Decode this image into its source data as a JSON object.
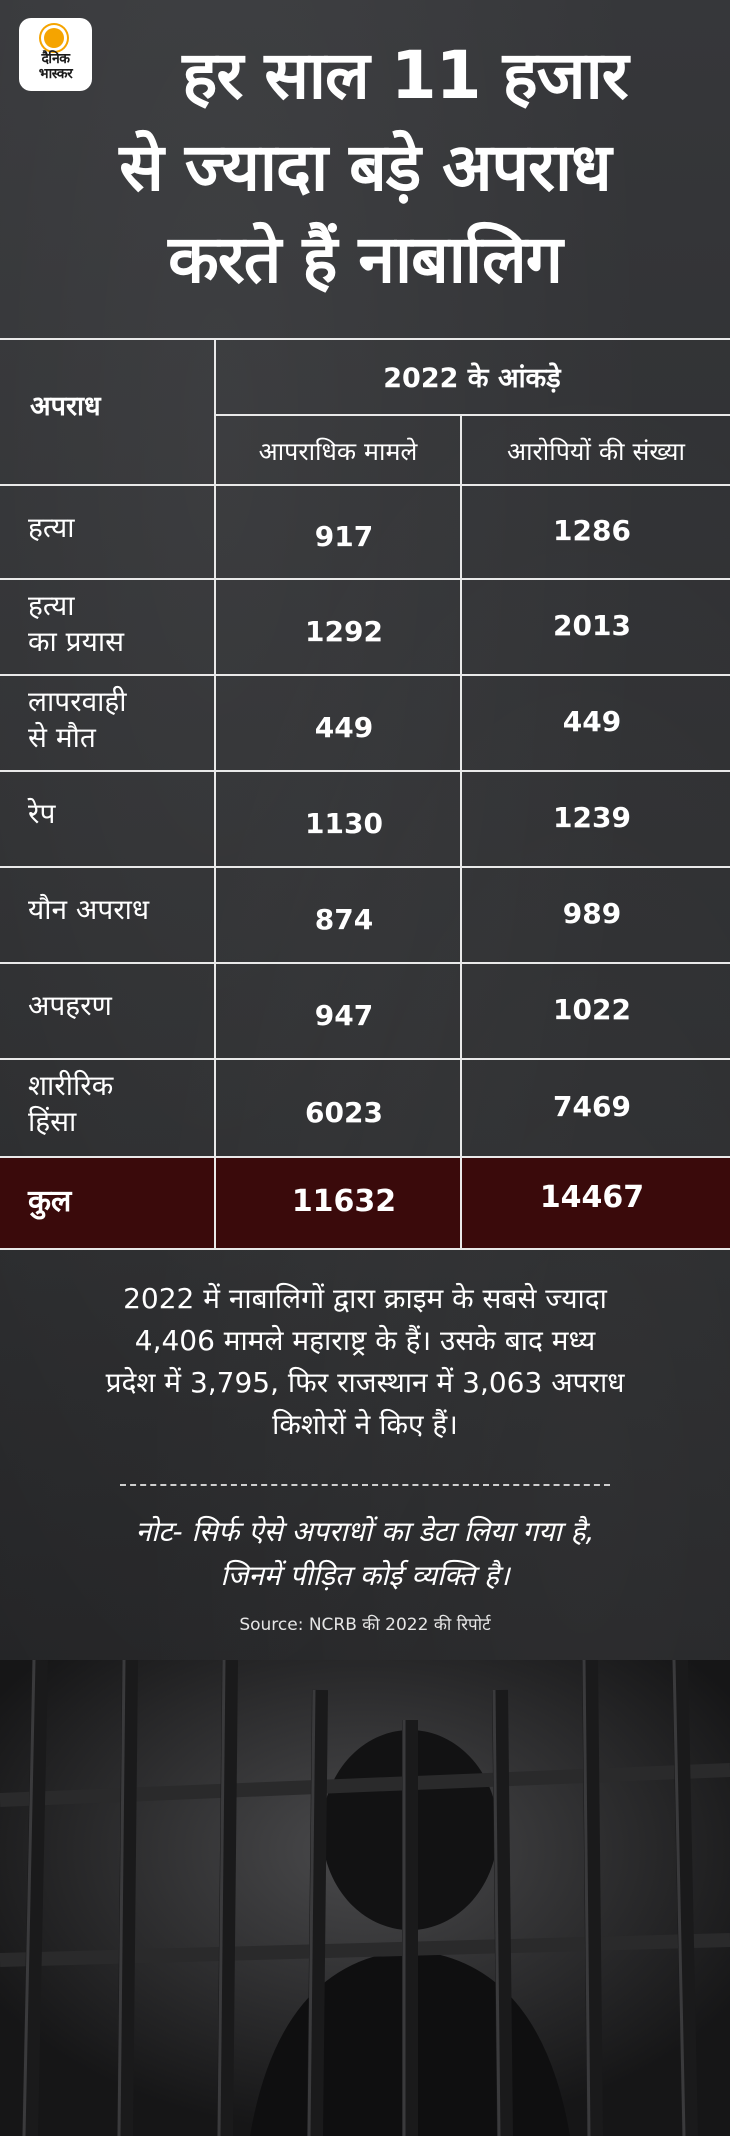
{
  "brand": {
    "logo_text_line1": "दैनिक",
    "logo_text_line2": "भास्कर"
  },
  "headline": {
    "line1": "हर साल 11 हजार",
    "line2": "से ज्यादा बड़े अपराध",
    "line3": "करते हैं नाबालिग"
  },
  "table": {
    "header_crime": "अपराध",
    "header_year": "2022 के आंकड़े",
    "header_col1": "आपराधिक मामले",
    "header_col2": "आरोपियों की संख्या"
  },
  "chart_data": {
    "type": "table",
    "title": "हर साल 11 हजार से ज्यादा बड़े अपराध करते हैं नाबालिग",
    "columns": [
      "अपराध",
      "आपराधिक मामले",
      "आरोपियों की संख्या"
    ],
    "rows": [
      {
        "crime_line1": "हत्या",
        "crime_line2": "",
        "cases": "917",
        "accused": "1286"
      },
      {
        "crime_line1": "हत्या",
        "crime_line2": "का प्रयास",
        "cases": "1292",
        "accused": "2013"
      },
      {
        "crime_line1": "लापरवाही",
        "crime_line2": "से मौत",
        "cases": "449",
        "accused": "449"
      },
      {
        "crime_line1": "रेप",
        "crime_line2": "",
        "cases": "1130",
        "accused": "1239"
      },
      {
        "crime_line1": "यौन अपराध",
        "crime_line2": "",
        "cases": "874",
        "accused": "989"
      },
      {
        "crime_line1": "अपहरण",
        "crime_line2": "",
        "cases": "947",
        "accused": "1022"
      },
      {
        "crime_line1": "शारीरिक",
        "crime_line2": "हिंसा",
        "cases": "6023",
        "accused": "7469"
      }
    ],
    "total": {
      "label": "कुल",
      "cases": "11632",
      "accused": "14467"
    }
  },
  "summary": {
    "line1": "2022 में नाबालिगों द्वारा क्राइम के सबसे ज्यादा",
    "line2": "4,406 मामले महाराष्ट्र के हैं। उसके बाद मध्य",
    "line3": "प्रदेश में 3,795, फिर राजस्थान में 3,063 अपराध",
    "line4": "किशोरों ने किए हैं।"
  },
  "note": {
    "line1": "नोट- सिर्फ ऐसे अपराधों का डेटा लिया गया है,",
    "line2": "जिनमें पीड़ित कोई व्यक्ति है।"
  },
  "source": "Source: NCRB की 2022 की रिपोर्ट",
  "colors": {
    "background": "#2e2f31",
    "total_row": "#3a0a0b",
    "logo_sun": "#f5a400"
  }
}
